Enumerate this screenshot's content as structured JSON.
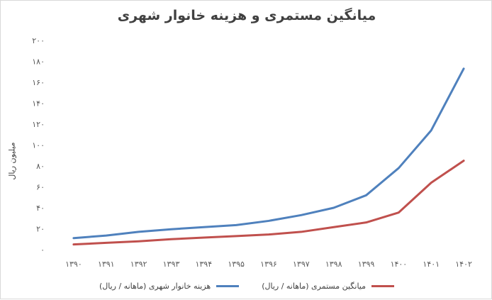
{
  "chart_data": {
    "type": "line",
    "title": "میانگین مستمری و هزینه خانوار شهری",
    "xlabel": "",
    "ylabel": "میلیون ریال",
    "categories": [
      "۱۳۹۰",
      "۱۳۹۱",
      "۱۳۹۲",
      "۱۳۹۳",
      "۱۳۹۴",
      "۱۳۹۵",
      "۱۳۹۶",
      "۱۳۹۷",
      "۱۳۹۸",
      "۱۳۹۹",
      "۱۴۰۰",
      "۱۴۰۱",
      "۱۴۰۲"
    ],
    "y_ticks": [
      "۰",
      "۲۰",
      "۴۰",
      "۶۰",
      "۸۰",
      "۱۰۰",
      "۱۲۰",
      "۱۴۰",
      "۱۶۰",
      "۱۸۰",
      "۲۰۰"
    ],
    "ylim": [
      0,
      200
    ],
    "grid": false,
    "legend_position": "bottom",
    "series": [
      {
        "name": "هزینه خانوار شهری (ماهانه / ریال)",
        "color": "#4f81bd",
        "values": [
          11,
          13.5,
          17,
          19.5,
          21.5,
          23.5,
          27.5,
          33,
          40,
          52,
          78,
          114,
          173
        ]
      },
      {
        "name": "میانگین مستمری (ماهانه / ریال)",
        "color": "#c0504d",
        "values": [
          5,
          6.5,
          8,
          10,
          11.5,
          13,
          14.5,
          17,
          21.5,
          26,
          35.5,
          64,
          85
        ]
      }
    ]
  }
}
